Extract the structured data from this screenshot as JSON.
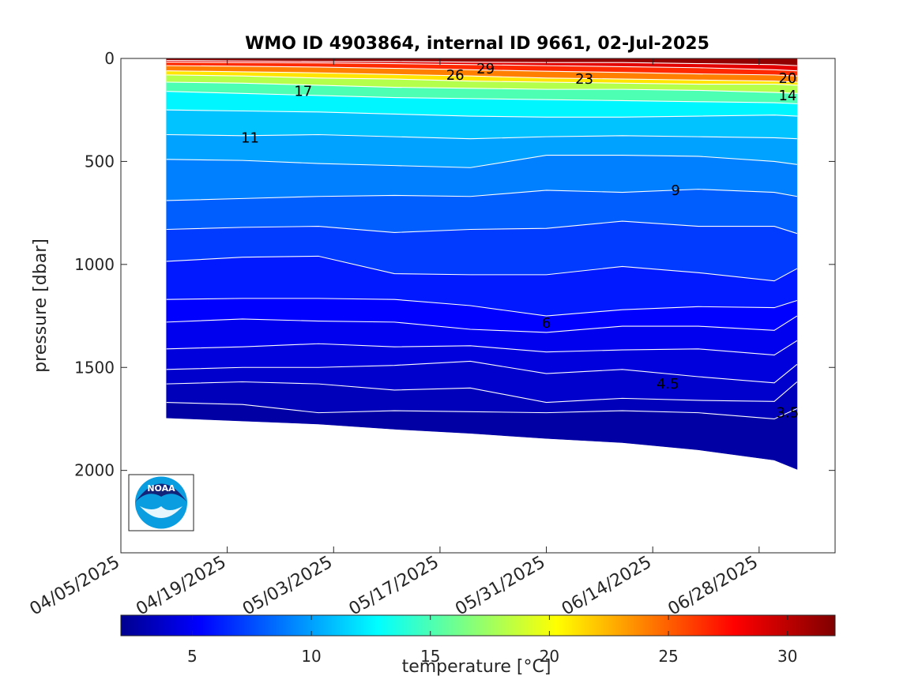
{
  "chart_data": {
    "type": "contour",
    "title": "WMO ID 4903864, internal ID 9661, 02-Jul-2025",
    "ylabel": "pressure [dbar]",
    "xlabel": "",
    "y_axis": {
      "range": [
        0,
        2400
      ],
      "reversed": true,
      "ticks": [
        0,
        500,
        1000,
        1500,
        2000
      ]
    },
    "x_axis": {
      "type": "date",
      "range": [
        "2025-04-05",
        "2025-07-08"
      ],
      "ticks": [
        "2025-04-05",
        "2025-04-19",
        "2025-05-03",
        "2025-05-17",
        "2025-05-31",
        "2025-06-14",
        "2025-06-28"
      ],
      "tick_labels": [
        "04/05/2025",
        "04/19/2025",
        "05/03/2025",
        "05/17/2025",
        "05/31/2025",
        "06/14/2025",
        "06/28/2025"
      ]
    },
    "colorbar": {
      "label": "temperature [°C]",
      "range": [
        2,
        32
      ],
      "ticks": [
        5,
        10,
        15,
        20,
        25,
        30
      ],
      "colormap": "jet"
    },
    "contour_labels": [
      {
        "text": "29",
        "date": "2025-05-23",
        "pressure": 50
      },
      {
        "text": "26",
        "date": "2025-05-19",
        "pressure": 80
      },
      {
        "text": "23",
        "date": "2025-06-05",
        "pressure": 100
      },
      {
        "text": "20",
        "date": "2025-07-05",
        "pressure": 95
      },
      {
        "text": "17",
        "date": "2025-04-29",
        "pressure": 160
      },
      {
        "text": "14",
        "date": "2025-07-02",
        "pressure": 180
      },
      {
        "text": "11",
        "date": "2025-04-22",
        "pressure": 385
      },
      {
        "text": "9",
        "date": "2025-06-17",
        "pressure": 640
      },
      {
        "text": "6",
        "date": "2025-05-31",
        "pressure": 1285
      },
      {
        "text": "4.5",
        "date": "2025-06-16",
        "pressure": 1580
      },
      {
        "text": "3.5",
        "date": "2025-07-06",
        "pressure": 1720
      }
    ],
    "profile_dates": [
      "2025-04-11",
      "2025-04-21",
      "2025-05-01",
      "2025-05-11",
      "2025-05-21",
      "2025-05-31",
      "2025-06-10",
      "2025-06-20",
      "2025-06-30",
      "2025-07-03"
    ],
    "max_pressure": [
      1745,
      1760,
      1775,
      1800,
      1820,
      1845,
      1865,
      1900,
      1950,
      1995
    ],
    "isotherms": [
      {
        "t": 30,
        "depths": [
          10,
          12,
          15,
          15,
          18,
          20,
          20,
          25,
          30,
          35
        ]
      },
      {
        "t": 28,
        "depths": [
          18,
          20,
          22,
          25,
          30,
          35,
          40,
          45,
          55,
          60
        ]
      },
      {
        "t": 26,
        "depths": [
          35,
          38,
          42,
          48,
          55,
          62,
          68,
          75,
          80,
          85
        ]
      },
      {
        "t": 23,
        "depths": [
          60,
          65,
          70,
          78,
          85,
          95,
          100,
          105,
          110,
          115
        ]
      },
      {
        "t": 20,
        "depths": [
          80,
          85,
          95,
          100,
          110,
          115,
          120,
          125,
          125,
          130
        ]
      },
      {
        "t": 17,
        "depths": [
          115,
          120,
          130,
          140,
          145,
          150,
          150,
          155,
          165,
          170
        ]
      },
      {
        "t": 14,
        "depths": [
          160,
          170,
          180,
          190,
          195,
          200,
          205,
          210,
          215,
          220
        ]
      },
      {
        "t": 12,
        "depths": [
          250,
          255,
          260,
          270,
          280,
          285,
          285,
          280,
          275,
          280
        ]
      },
      {
        "t": 11,
        "depths": [
          370,
          375,
          370,
          380,
          390,
          380,
          375,
          380,
          385,
          390
        ]
      },
      {
        "t": 10,
        "depths": [
          490,
          495,
          510,
          520,
          530,
          470,
          470,
          475,
          500,
          515
        ]
      },
      {
        "t": 9,
        "depths": [
          690,
          680,
          670,
          665,
          670,
          640,
          650,
          635,
          650,
          670
        ]
      },
      {
        "t": 8,
        "depths": [
          830,
          820,
          815,
          845,
          830,
          825,
          790,
          815,
          815,
          850
        ]
      },
      {
        "t": 7,
        "depths": [
          985,
          965,
          960,
          1045,
          1050,
          1050,
          1010,
          1040,
          1080,
          1020
        ]
      },
      {
        "t": 6,
        "depths": [
          1170,
          1165,
          1165,
          1170,
          1200,
          1250,
          1220,
          1205,
          1210,
          1175
        ]
      },
      {
        "t": 5.5,
        "depths": [
          1280,
          1265,
          1275,
          1280,
          1315,
          1330,
          1300,
          1300,
          1320,
          1250
        ]
      },
      {
        "t": 5,
        "depths": [
          1410,
          1400,
          1385,
          1400,
          1395,
          1425,
          1415,
          1410,
          1440,
          1370
        ]
      },
      {
        "t": 4.5,
        "depths": [
          1510,
          1500,
          1500,
          1490,
          1470,
          1530,
          1510,
          1545,
          1575,
          1485
        ]
      },
      {
        "t": 4,
        "depths": [
          1580,
          1570,
          1580,
          1610,
          1600,
          1670,
          1650,
          1660,
          1665,
          1570
        ]
      },
      {
        "t": 3.5,
        "depths": [
          1670,
          1680,
          1720,
          1710,
          1715,
          1720,
          1710,
          1720,
          1750,
          1700
        ]
      }
    ],
    "grid": false
  },
  "logo": {
    "text": "NOAA",
    "icon": "noaa-logo-icon"
  }
}
